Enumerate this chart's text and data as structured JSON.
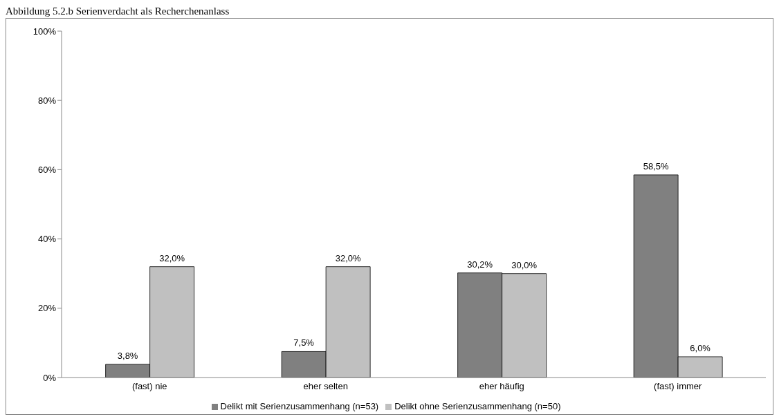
{
  "chart_data": {
    "type": "bar",
    "title": "Abbildung 5.2.b Serienverdacht als Recherchenanlass",
    "categories": [
      "(fast) nie",
      "eher selten",
      "eher häufig",
      "(fast) immer"
    ],
    "series": [
      {
        "name": "Delikt mit Serienzusammenhang (n=53)",
        "color": "#808080",
        "values": [
          3.8,
          7.5,
          30.2,
          58.5
        ]
      },
      {
        "name": "Delikt ohne Serienzusammenhang (n=50)",
        "color": "#c0c0c0",
        "values": [
          32.0,
          32.0,
          30.0,
          6.0
        ]
      }
    ],
    "ylim": [
      0,
      100
    ],
    "yticks": [
      {
        "value": 0,
        "label": "0%"
      },
      {
        "value": 20,
        "label": "20%"
      },
      {
        "value": 40,
        "label": "40%"
      },
      {
        "value": 60,
        "label": "60%"
      },
      {
        "value": 80,
        "label": "80%"
      },
      {
        "value": 100,
        "label": "100%"
      }
    ],
    "value_labels": [
      [
        "3,8%",
        "7,5%",
        "30,2%",
        "58,5%"
      ],
      [
        "32,0%",
        "32,0%",
        "30,0%",
        "6,0%"
      ]
    ],
    "grid": false,
    "legend": "bottom"
  }
}
